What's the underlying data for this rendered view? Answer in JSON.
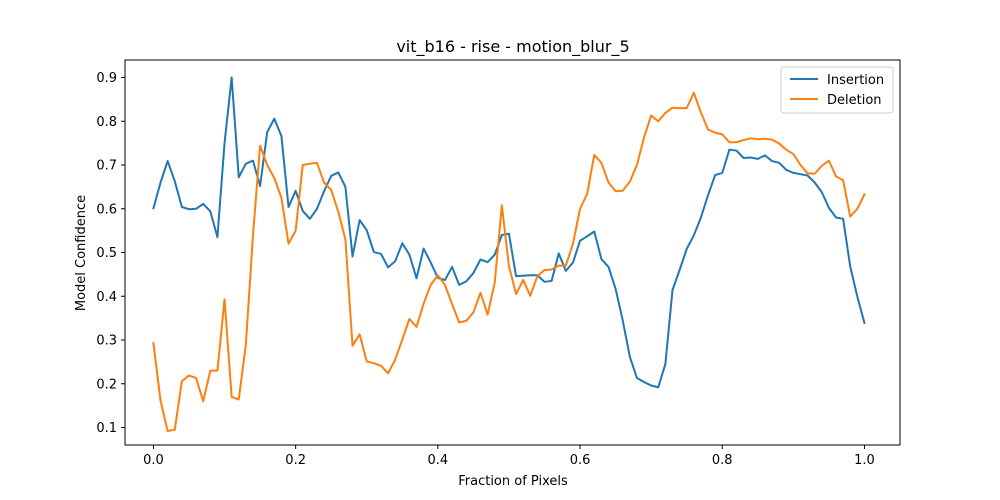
{
  "chart_data": {
    "type": "line",
    "title": "vit_b16 - rise - motion_blur_5",
    "xlabel": "Fraction of Pixels",
    "ylabel": "Model Confidence",
    "xlim": [
      -0.04,
      1.05
    ],
    "ylim": [
      0.06,
      0.94
    ],
    "xticks": [
      0.0,
      0.2,
      0.4,
      0.6,
      0.8,
      1.0
    ],
    "xtick_labels": [
      "0.0",
      "0.2",
      "0.4",
      "0.6",
      "0.8",
      "1.0"
    ],
    "yticks": [
      0.1,
      0.2,
      0.3,
      0.4,
      0.5,
      0.6,
      0.7,
      0.8,
      0.9
    ],
    "ytick_labels": [
      "0.1",
      "0.2",
      "0.3",
      "0.4",
      "0.5",
      "0.6",
      "0.7",
      "0.8",
      "0.9"
    ],
    "grid": false,
    "legend_position": "top-right",
    "x": [
      0.0,
      0.01,
      0.02,
      0.03,
      0.04,
      0.05,
      0.06,
      0.07,
      0.08,
      0.09,
      0.1,
      0.11,
      0.12,
      0.13,
      0.14,
      0.15,
      0.16,
      0.17,
      0.18,
      0.19,
      0.2,
      0.21,
      0.22,
      0.23,
      0.24,
      0.25,
      0.26,
      0.27,
      0.28,
      0.29,
      0.3,
      0.31,
      0.32,
      0.33,
      0.34,
      0.35,
      0.36,
      0.37,
      0.38,
      0.39,
      0.4,
      0.41,
      0.42,
      0.43,
      0.44,
      0.45,
      0.46,
      0.47,
      0.48,
      0.49,
      0.5,
      0.51,
      0.52,
      0.53,
      0.54,
      0.55,
      0.56,
      0.57,
      0.58,
      0.59,
      0.6,
      0.61,
      0.62,
      0.63,
      0.64,
      0.65,
      0.66,
      0.67,
      0.68,
      0.69,
      0.7,
      0.71,
      0.72,
      0.73,
      0.74,
      0.75,
      0.76,
      0.77,
      0.78,
      0.79,
      0.8,
      0.81,
      0.82,
      0.83,
      0.84,
      0.85,
      0.86,
      0.87,
      0.88,
      0.89,
      0.9,
      0.91,
      0.92,
      0.93,
      0.94,
      0.95,
      0.96,
      0.97,
      0.98,
      0.99,
      1.0
    ],
    "series": [
      {
        "name": "Insertion",
        "color": "#1f77b4",
        "values": [
          0.601,
          0.66,
          0.709,
          0.663,
          0.604,
          0.599,
          0.6,
          0.611,
          0.594,
          0.535,
          0.75,
          0.9,
          0.672,
          0.703,
          0.71,
          0.652,
          0.775,
          0.806,
          0.766,
          0.604,
          0.641,
          0.595,
          0.577,
          0.6,
          0.64,
          0.675,
          0.683,
          0.65,
          0.491,
          0.574,
          0.551,
          0.501,
          0.497,
          0.466,
          0.48,
          0.521,
          0.495,
          0.441,
          0.509,
          0.477,
          0.442,
          0.437,
          0.467,
          0.426,
          0.434,
          0.453,
          0.484,
          0.478,
          0.495,
          0.54,
          0.543,
          0.446,
          0.447,
          0.448,
          0.448,
          0.433,
          0.435,
          0.498,
          0.458,
          0.477,
          0.527,
          0.537,
          0.548,
          0.485,
          0.467,
          0.417,
          0.345,
          0.262,
          0.213,
          0.204,
          0.196,
          0.192,
          0.245,
          0.414,
          0.46,
          0.508,
          0.539,
          0.58,
          0.631,
          0.677,
          0.682,
          0.735,
          0.733,
          0.716,
          0.717,
          0.714,
          0.722,
          0.709,
          0.705,
          0.689,
          0.682,
          0.679,
          0.676,
          0.66,
          0.638,
          0.602,
          0.58,
          0.577,
          0.468,
          0.399,
          0.339
        ]
      },
      {
        "name": "Deletion",
        "color": "#ff7f0e",
        "values": [
          0.293,
          0.161,
          0.092,
          0.095,
          0.206,
          0.219,
          0.213,
          0.16,
          0.23,
          0.23,
          0.393,
          0.17,
          0.164,
          0.29,
          0.54,
          0.744,
          0.7,
          0.67,
          0.625,
          0.52,
          0.55,
          0.7,
          0.703,
          0.705,
          0.66,
          0.643,
          0.593,
          0.53,
          0.287,
          0.313,
          0.251,
          0.247,
          0.241,
          0.224,
          0.255,
          0.301,
          0.348,
          0.33,
          0.383,
          0.426,
          0.448,
          0.426,
          0.382,
          0.34,
          0.344,
          0.363,
          0.408,
          0.358,
          0.431,
          0.608,
          0.469,
          0.405,
          0.437,
          0.401,
          0.446,
          0.46,
          0.461,
          0.47,
          0.47,
          0.52,
          0.6,
          0.634,
          0.723,
          0.705,
          0.66,
          0.64,
          0.641,
          0.662,
          0.7,
          0.763,
          0.813,
          0.8,
          0.819,
          0.831,
          0.83,
          0.83,
          0.865,
          0.82,
          0.781,
          0.774,
          0.77,
          0.752,
          0.752,
          0.757,
          0.761,
          0.759,
          0.76,
          0.758,
          0.749,
          0.735,
          0.725,
          0.7,
          0.681,
          0.68,
          0.698,
          0.71,
          0.674,
          0.665,
          0.582,
          0.6,
          0.633
        ]
      }
    ]
  }
}
